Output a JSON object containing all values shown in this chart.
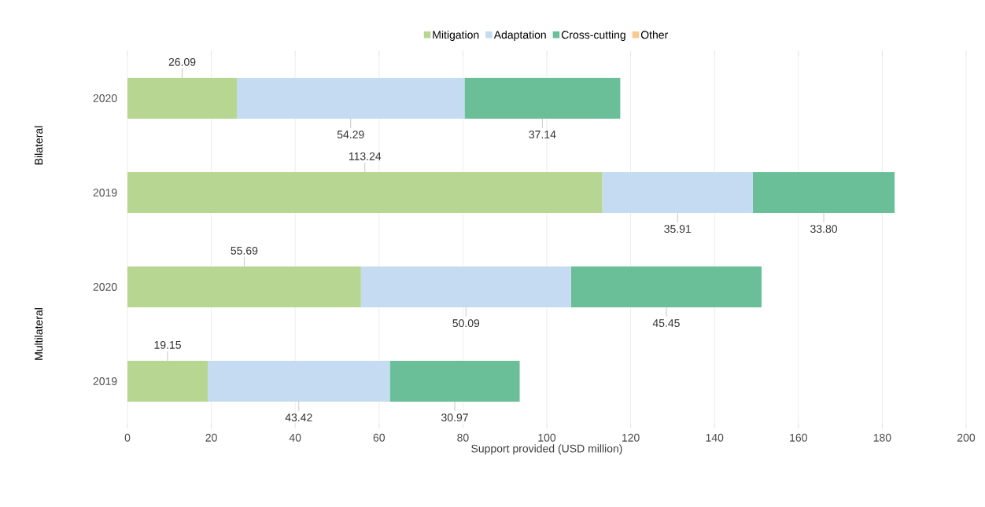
{
  "chart_data": {
    "type": "bar",
    "orientation": "horizontal",
    "stacked": true,
    "xlabel": "Support provided (USD million)",
    "categories": [
      "2020",
      "2019",
      "2020",
      "2019"
    ],
    "annotations": [
      "Bilateral",
      "Multilateral"
    ],
    "series": [
      {
        "name": "Mitigation",
        "color": "#b7d692",
        "values": [
          26.09,
          113.24,
          55.69,
          19.15
        ],
        "value_labels": [
          "26.09",
          "113.24",
          "55.69",
          "19.15"
        ]
      },
      {
        "name": "Adaptation",
        "color": "#c5dbf1",
        "values": [
          54.29,
          35.91,
          50.09,
          43.42
        ],
        "value_labels": [
          "54.29",
          "35.91",
          "50.09",
          "43.42"
        ]
      },
      {
        "name": "Cross-cutting",
        "color": "#6bbf98",
        "values": [
          37.14,
          33.8,
          45.45,
          30.97
        ],
        "value_labels": [
          "37.14",
          "33.80",
          "45.45",
          "30.97"
        ]
      },
      {
        "name": "Other",
        "color": "#fac891",
        "values": [
          null,
          null,
          null,
          null
        ]
      }
    ],
    "xlim": [
      0,
      200
    ],
    "xticks": [
      0,
      20,
      40,
      60,
      80,
      100,
      120,
      140,
      160,
      180,
      200
    ],
    "grid": "x",
    "legend": "top"
  }
}
